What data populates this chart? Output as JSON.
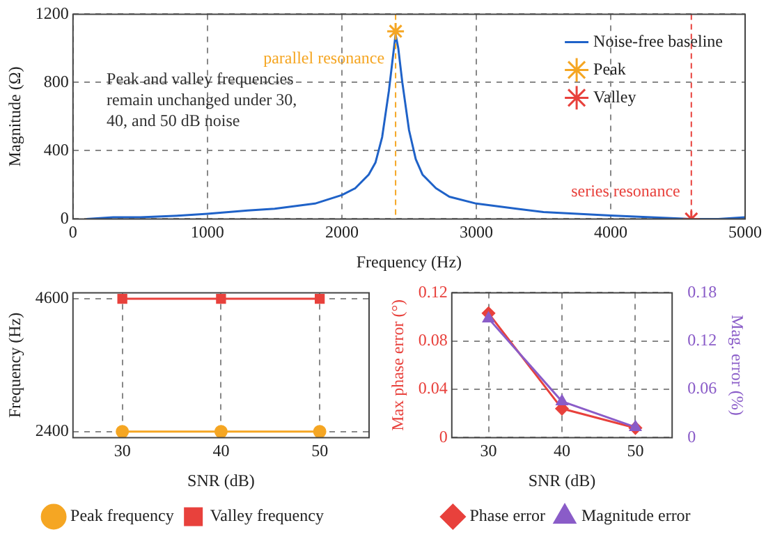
{
  "chart_data": [
    {
      "type": "line",
      "xlabel": "Frequency (Hz)",
      "ylabel": "Magnitude (Ω)",
      "x": [
        100,
        300,
        500,
        800,
        1000,
        1300,
        1500,
        1800,
        2000,
        2100,
        2200,
        2250,
        2300,
        2350,
        2380,
        2400,
        2420,
        2450,
        2500,
        2550,
        2600,
        2700,
        2800,
        3000,
        3300,
        3500,
        4000,
        4300,
        4600,
        4800,
        5000
      ],
      "xlim": [
        0,
        5000
      ],
      "xticks": [
        0,
        1000,
        2000,
        3000,
        4000,
        5000
      ],
      "ylim": [
        0,
        1200
      ],
      "yticks": [
        0,
        400,
        800,
        1200
      ],
      "grid": true,
      "legend": "top right",
      "series": [
        {
          "name": "Noise-free baseline",
          "marker": "none",
          "color": "#1f62c8",
          "values": [
            0,
            10,
            10,
            20,
            30,
            50,
            60,
            90,
            140,
            180,
            260,
            330,
            480,
            750,
            950,
            1080,
            1000,
            800,
            520,
            350,
            260,
            180,
            130,
            90,
            60,
            40,
            20,
            10,
            0,
            0,
            10
          ]
        },
        {
          "name": "Peak",
          "type": "scatter",
          "marker": "cross",
          "color": "#f5a623",
          "x": [
            2400
          ],
          "values": [
            1100
          ]
        },
        {
          "name": "Valley",
          "type": "scatter",
          "marker": "cross",
          "color": "#e8413c",
          "x": [
            4600
          ],
          "values": [
            0
          ]
        }
      ],
      "ref_lines": [
        {
          "axis": "x",
          "value": 2400,
          "label": "parallel resonance",
          "color": "#f5a623",
          "line_style": "dashed"
        },
        {
          "axis": "x",
          "value": 4600,
          "label": "series resonance",
          "color": "#e8413c",
          "line_style": "dashed"
        }
      ],
      "annotations": [
        "Peak and valley frequencies remain unchanged under 30, 40, and 50 dB noise"
      ]
    },
    {
      "type": "line",
      "xlabel": "SNR (dB)",
      "ylabel": "Frequency (Hz)",
      "categories": [
        "30",
        "40",
        "50"
      ],
      "ylim": [
        2300,
        4700
      ],
      "yticks": [
        2400,
        4600
      ],
      "grid": true,
      "legend": "bottom",
      "series": [
        {
          "name": "Peak frequency",
          "marker": "circle",
          "color": "#f5a623",
          "values": [
            2400,
            2400,
            2400
          ]
        },
        {
          "name": "Valley frequency",
          "marker": "square",
          "color": "#e8413c",
          "values": [
            4600,
            4600,
            4600
          ]
        }
      ]
    },
    {
      "type": "line",
      "xlabel": "SNR (dB)",
      "ylabel": "Max phase error (°)",
      "y2label": "Mag. error (%)",
      "categories": [
        "30",
        "40",
        "50"
      ],
      "ylim": [
        0,
        0.12
      ],
      "yticks": [
        0,
        0.04,
        0.08,
        0.12
      ],
      "y2lim": [
        0,
        0.18
      ],
      "y2ticks": [
        0,
        0.06,
        0.12,
        0.18
      ],
      "grid": true,
      "legend": "bottom",
      "series": [
        {
          "name": "Phase error",
          "marker": "diamond",
          "color": "#e8413c",
          "values": [
            0.103,
            0.024,
            0.008
          ]
        },
        {
          "name": "Magnitude error",
          "marker": "triangle",
          "color": "#8a5cc8",
          "axis": "y2",
          "values": [
            0.148,
            0.045,
            0.013
          ]
        }
      ]
    }
  ]
}
